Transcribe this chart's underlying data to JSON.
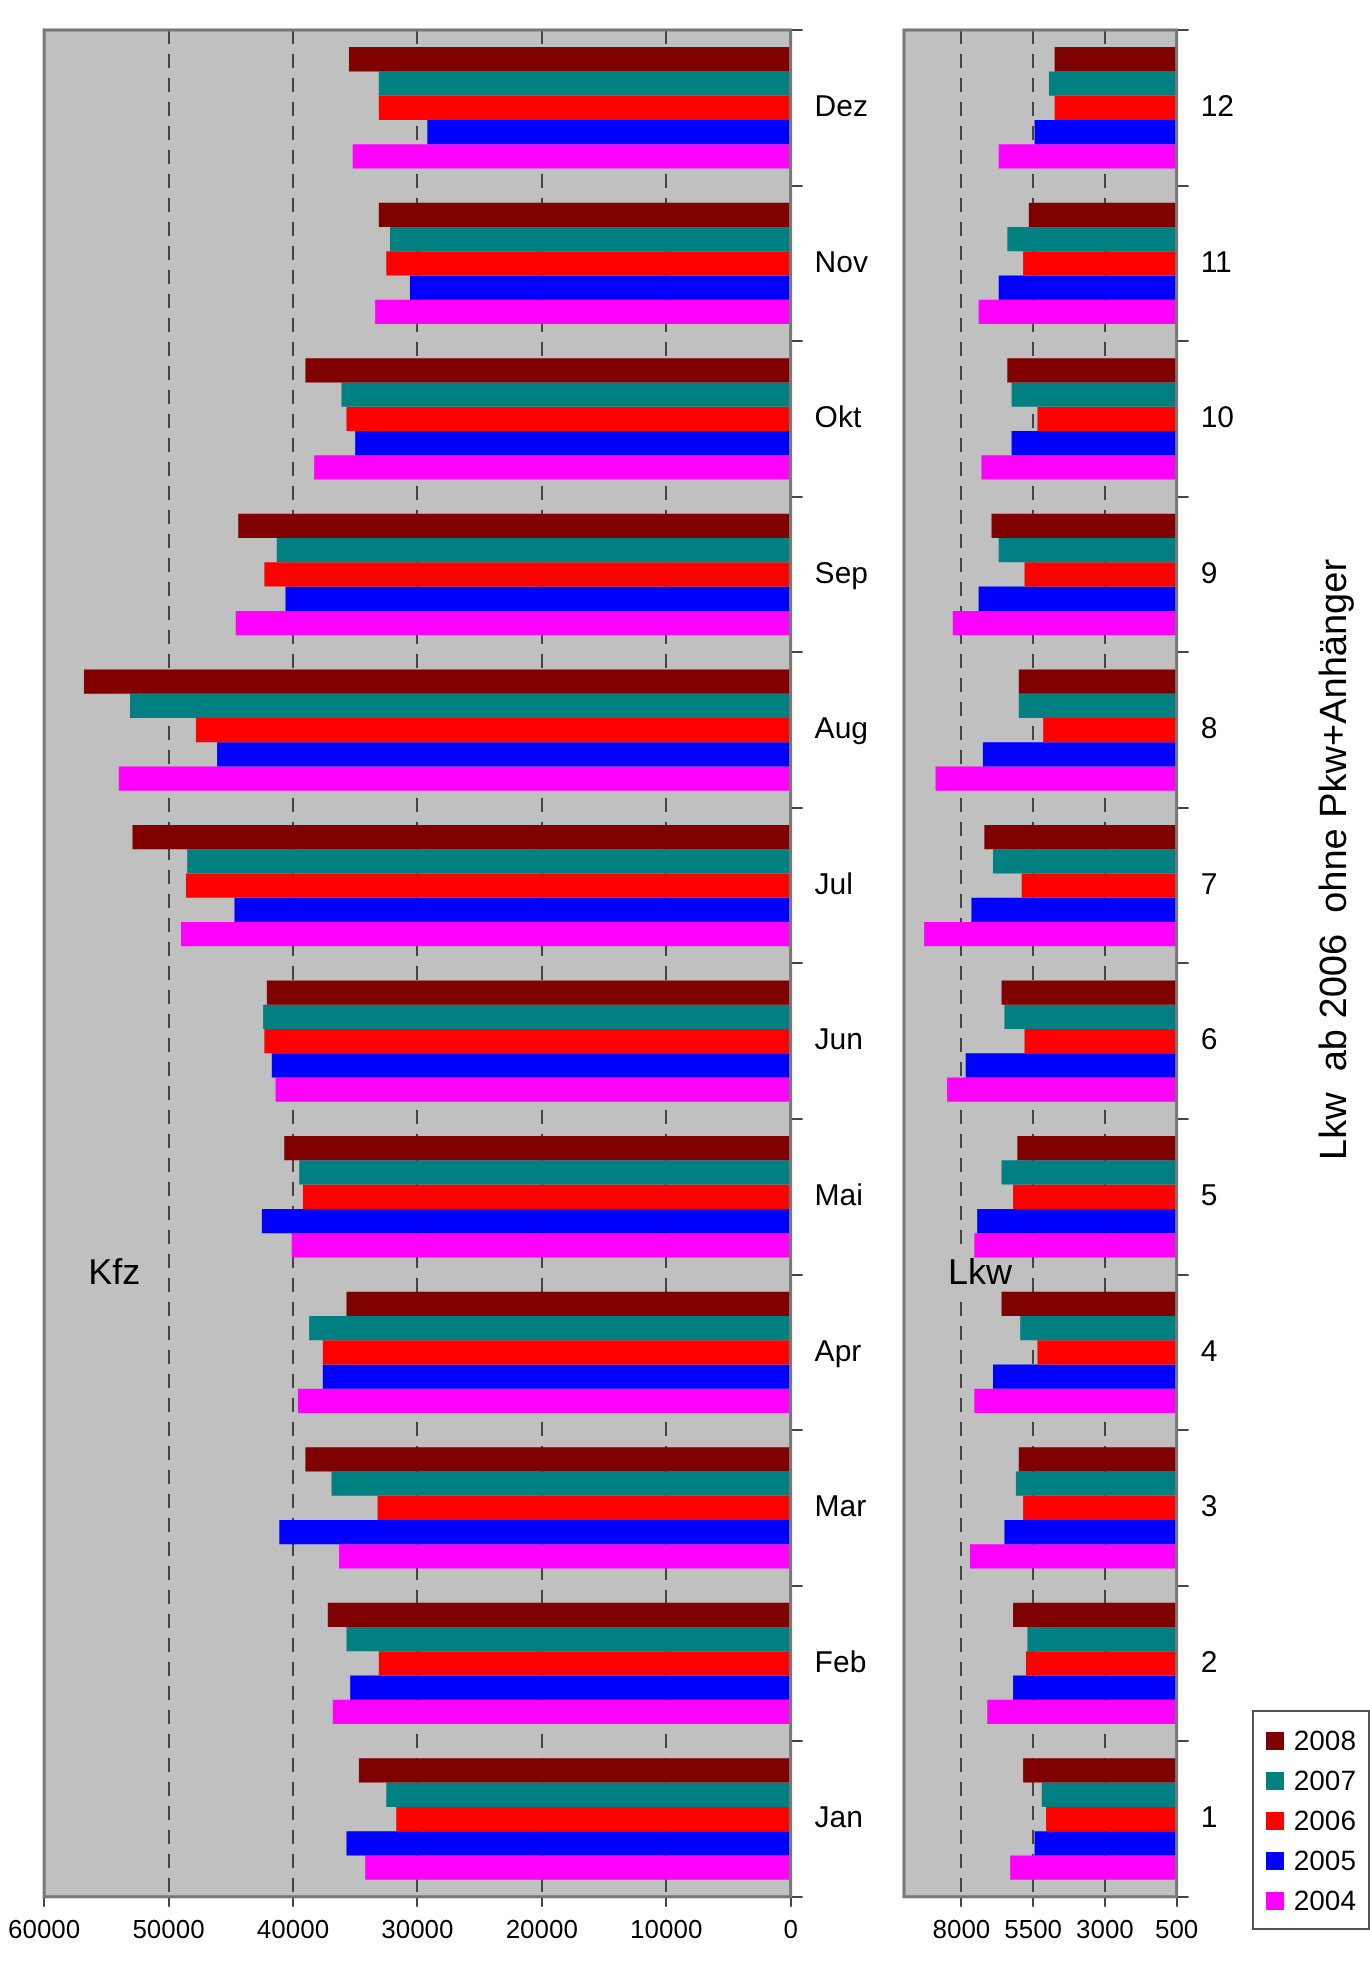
{
  "chart_data": [
    {
      "type": "bar",
      "orientation": "horizontal",
      "title": "Kfz",
      "categories": [
        "Dez",
        "Nov",
        "Okt",
        "Sep",
        "Aug",
        "Jul",
        "Jun",
        "Mai",
        "Apr",
        "Mar",
        "Feb",
        "Jan"
      ],
      "series": [
        {
          "color": "#800000",
          "values": [
            35500,
            33100,
            39000,
            44400,
            56800,
            52900,
            42100,
            40700,
            35700,
            39000,
            37200,
            34700
          ]
        },
        {
          "color": "#008080",
          "values": [
            33100,
            32200,
            36100,
            41300,
            53100,
            48500,
            42400,
            39500,
            38700,
            36900,
            35700,
            32500
          ]
        },
        {
          "color": "#ff0000",
          "values": [
            33100,
            32500,
            35700,
            42300,
            47800,
            48600,
            42300,
            39200,
            37600,
            33200,
            33100,
            31700
          ]
        },
        {
          "color": "#0000ff",
          "values": [
            29200,
            30600,
            35000,
            40600,
            46100,
            44700,
            41700,
            42500,
            37600,
            41100,
            35400,
            35700
          ]
        },
        {
          "color": "#ff00ff",
          "values": [
            35200,
            33400,
            38300,
            44600,
            54000,
            49000,
            41400,
            40100,
            39600,
            36300,
            36800,
            34200
          ]
        }
      ],
      "xlim": [
        60000,
        0
      ],
      "xticks": [
        60000,
        50000,
        40000,
        30000,
        20000,
        10000,
        0
      ],
      "grid": "x"
    },
    {
      "type": "bar",
      "orientation": "horizontal",
      "title": "Lkw",
      "categories": [
        "12",
        "11",
        "10",
        "9",
        "8",
        "7",
        "6",
        "5",
        "4",
        "3",
        "2",
        "1"
      ],
      "series": [
        {
          "name": "2008",
          "color": "#800000",
          "values": [
            4750,
            5650,
            6400,
            6950,
            6000,
            7200,
            6600,
            6050,
            6600,
            6000,
            6200,
            5850
          ]
        },
        {
          "name": "2007",
          "color": "#008080",
          "values": [
            4950,
            6400,
            6250,
            6700,
            6000,
            6900,
            6500,
            6600,
            5950,
            6100,
            5700,
            5200
          ]
        },
        {
          "name": "2006",
          "color": "#ff0000",
          "values": [
            4750,
            5850,
            5350,
            5800,
            5150,
            5900,
            5800,
            6200,
            5350,
            5850,
            5750,
            5050
          ]
        },
        {
          "name": "2005",
          "color": "#0000ff",
          "values": [
            5450,
            6700,
            6250,
            7400,
            7250,
            7650,
            7850,
            7450,
            6900,
            6500,
            6200,
            5450
          ]
        },
        {
          "name": "2004",
          "color": "#ff00ff",
          "values": [
            6700,
            7400,
            7300,
            8300,
            8900,
            9300,
            8500,
            7550,
            7550,
            7700,
            7100,
            6300
          ]
        }
      ],
      "xlim": [
        10000,
        500
      ],
      "xticks": [
        8000,
        5500,
        3000,
        500
      ],
      "grid": "x",
      "legend": "bottom right",
      "annotations": [
        "Lkw  ab 2006  ohne Pkw+Anhänger"
      ]
    }
  ]
}
